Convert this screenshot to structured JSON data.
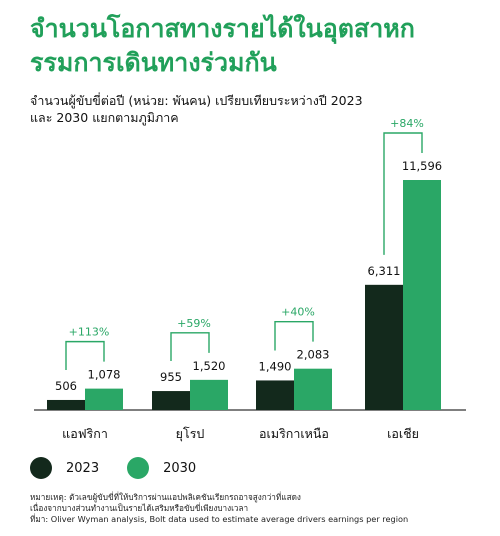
{
  "header": {
    "title_line1": "จำนวนโอกาสทางรายได้ในอุตสาหก",
    "title_line2": "รรมการเดินทางร่วมกัน",
    "subtitle_line1": "จำนวนผู้ขับขี่ต่อปี (หน่วย: พันคน) เปรียบเทียบระหว่างปี 2023",
    "subtitle_line2": "และ 2030 แยกตามภูมิภาค"
  },
  "colors": {
    "title": "#21a05a",
    "series_2023": "#13291c",
    "series_2030": "#2aa766",
    "growth_label": "#2aa766",
    "bracket": "#2aa766",
    "baseline": "#333333"
  },
  "chart_data": {
    "type": "bar",
    "categories": [
      "แอฟริกา",
      "ยุโรป",
      "อเมริกาเหนือ",
      "เอเชีย"
    ],
    "series": [
      {
        "name": "2023",
        "values": [
          506,
          955,
          1490,
          6311
        ],
        "labels": [
          "506",
          "955",
          "1,490",
          "6,311"
        ]
      },
      {
        "name": "2030",
        "values": [
          1078,
          1520,
          2083,
          11596
        ],
        "labels": [
          "1,078",
          "1,520",
          "2,083",
          "11,596"
        ]
      }
    ],
    "growth_labels": [
      "+113%",
      "+59%",
      "+40%",
      "+84%"
    ],
    "ylim": [
      0,
      11596
    ],
    "grid": false,
    "legend_position": "bottom-left"
  },
  "legend": {
    "items": [
      {
        "label": "2023"
      },
      {
        "label": "2030"
      }
    ]
  },
  "footnote": {
    "line1": "หมายเหตุ: ตัวเลขผู้ขับขี่ที่ให้บริการผ่านแอปพลิเคชันเรียกรถอาจสูงกว่าที่แสดง",
    "line2": "เนื่องจากบางส่วนทำงานเป็นรายได้เสริมหรือขับขี่เพียงบางเวลา",
    "line3": "ที่มา: Oliver Wyman analysis, Bolt data used to estimate average drivers earnings per region"
  }
}
